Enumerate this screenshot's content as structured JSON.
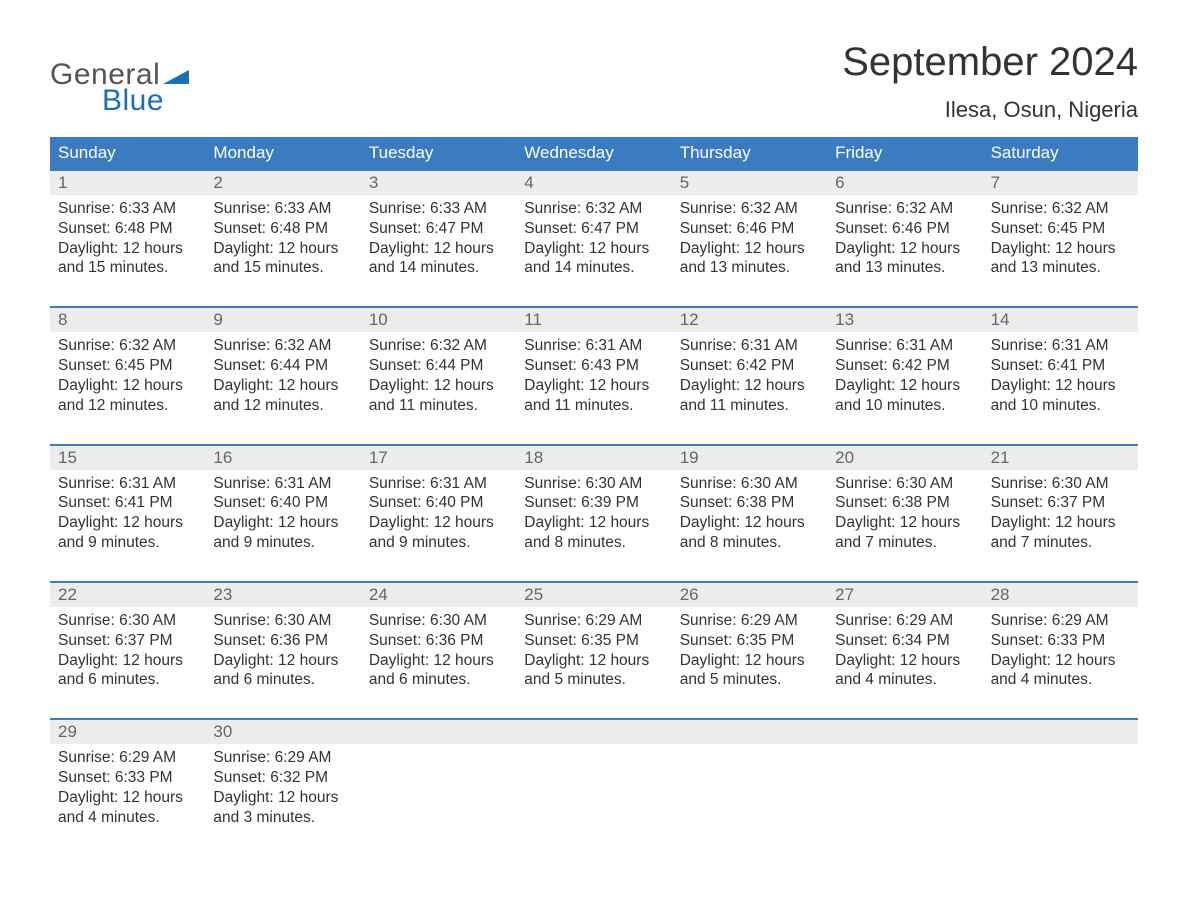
{
  "logo": {
    "text_general": "General",
    "text_blue": "Blue",
    "flag_color": "#1a6fb5"
  },
  "title": "September 2024",
  "location": "Ilesa, Osun, Nigeria",
  "colors": {
    "header_bg": "#3b7bbf",
    "header_text": "#ffffff",
    "daynum_bg": "#ececec",
    "daynum_text": "#666666",
    "body_text": "#333333",
    "week_border": "#3b7bbf",
    "background": "#ffffff",
    "logo_blue": "#1a6fb5",
    "logo_gray": "#555555"
  },
  "typography": {
    "title_fontsize": 40,
    "location_fontsize": 22,
    "weekday_fontsize": 17,
    "daynum_fontsize": 17,
    "cell_fontsize": 15.5,
    "font_family": "Arial"
  },
  "weekdays": [
    "Sunday",
    "Monday",
    "Tuesday",
    "Wednesday",
    "Thursday",
    "Friday",
    "Saturday"
  ],
  "weeks": [
    [
      {
        "n": "1",
        "sunrise": "6:33 AM",
        "sunset": "6:48 PM",
        "daylight": "12 hours and 15 minutes."
      },
      {
        "n": "2",
        "sunrise": "6:33 AM",
        "sunset": "6:48 PM",
        "daylight": "12 hours and 15 minutes."
      },
      {
        "n": "3",
        "sunrise": "6:33 AM",
        "sunset": "6:47 PM",
        "daylight": "12 hours and 14 minutes."
      },
      {
        "n": "4",
        "sunrise": "6:32 AM",
        "sunset": "6:47 PM",
        "daylight": "12 hours and 14 minutes."
      },
      {
        "n": "5",
        "sunrise": "6:32 AM",
        "sunset": "6:46 PM",
        "daylight": "12 hours and 13 minutes."
      },
      {
        "n": "6",
        "sunrise": "6:32 AM",
        "sunset": "6:46 PM",
        "daylight": "12 hours and 13 minutes."
      },
      {
        "n": "7",
        "sunrise": "6:32 AM",
        "sunset": "6:45 PM",
        "daylight": "12 hours and 13 minutes."
      }
    ],
    [
      {
        "n": "8",
        "sunrise": "6:32 AM",
        "sunset": "6:45 PM",
        "daylight": "12 hours and 12 minutes."
      },
      {
        "n": "9",
        "sunrise": "6:32 AM",
        "sunset": "6:44 PM",
        "daylight": "12 hours and 12 minutes."
      },
      {
        "n": "10",
        "sunrise": "6:32 AM",
        "sunset": "6:44 PM",
        "daylight": "12 hours and 11 minutes."
      },
      {
        "n": "11",
        "sunrise": "6:31 AM",
        "sunset": "6:43 PM",
        "daylight": "12 hours and 11 minutes."
      },
      {
        "n": "12",
        "sunrise": "6:31 AM",
        "sunset": "6:42 PM",
        "daylight": "12 hours and 11 minutes."
      },
      {
        "n": "13",
        "sunrise": "6:31 AM",
        "sunset": "6:42 PM",
        "daylight": "12 hours and 10 minutes."
      },
      {
        "n": "14",
        "sunrise": "6:31 AM",
        "sunset": "6:41 PM",
        "daylight": "12 hours and 10 minutes."
      }
    ],
    [
      {
        "n": "15",
        "sunrise": "6:31 AM",
        "sunset": "6:41 PM",
        "daylight": "12 hours and 9 minutes."
      },
      {
        "n": "16",
        "sunrise": "6:31 AM",
        "sunset": "6:40 PM",
        "daylight": "12 hours and 9 minutes."
      },
      {
        "n": "17",
        "sunrise": "6:31 AM",
        "sunset": "6:40 PM",
        "daylight": "12 hours and 9 minutes."
      },
      {
        "n": "18",
        "sunrise": "6:30 AM",
        "sunset": "6:39 PM",
        "daylight": "12 hours and 8 minutes."
      },
      {
        "n": "19",
        "sunrise": "6:30 AM",
        "sunset": "6:38 PM",
        "daylight": "12 hours and 8 minutes."
      },
      {
        "n": "20",
        "sunrise": "6:30 AM",
        "sunset": "6:38 PM",
        "daylight": "12 hours and 7 minutes."
      },
      {
        "n": "21",
        "sunrise": "6:30 AM",
        "sunset": "6:37 PM",
        "daylight": "12 hours and 7 minutes."
      }
    ],
    [
      {
        "n": "22",
        "sunrise": "6:30 AM",
        "sunset": "6:37 PM",
        "daylight": "12 hours and 6 minutes."
      },
      {
        "n": "23",
        "sunrise": "6:30 AM",
        "sunset": "6:36 PM",
        "daylight": "12 hours and 6 minutes."
      },
      {
        "n": "24",
        "sunrise": "6:30 AM",
        "sunset": "6:36 PM",
        "daylight": "12 hours and 6 minutes."
      },
      {
        "n": "25",
        "sunrise": "6:29 AM",
        "sunset": "6:35 PM",
        "daylight": "12 hours and 5 minutes."
      },
      {
        "n": "26",
        "sunrise": "6:29 AM",
        "sunset": "6:35 PM",
        "daylight": "12 hours and 5 minutes."
      },
      {
        "n": "27",
        "sunrise": "6:29 AM",
        "sunset": "6:34 PM",
        "daylight": "12 hours and 4 minutes."
      },
      {
        "n": "28",
        "sunrise": "6:29 AM",
        "sunset": "6:33 PM",
        "daylight": "12 hours and 4 minutes."
      }
    ],
    [
      {
        "n": "29",
        "sunrise": "6:29 AM",
        "sunset": "6:33 PM",
        "daylight": "12 hours and 4 minutes."
      },
      {
        "n": "30",
        "sunrise": "6:29 AM",
        "sunset": "6:32 PM",
        "daylight": "12 hours and 3 minutes."
      },
      null,
      null,
      null,
      null,
      null
    ]
  ],
  "labels": {
    "sunrise_prefix": "Sunrise: ",
    "sunset_prefix": "Sunset: ",
    "daylight_prefix": "Daylight: "
  }
}
